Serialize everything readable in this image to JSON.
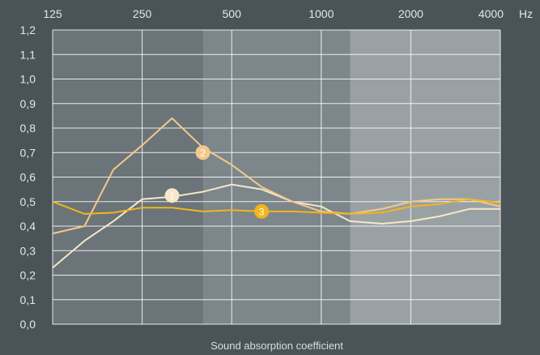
{
  "chart_data": {
    "type": "line",
    "xlabel": "Sound absorption coefficient",
    "x_unit": "Hz",
    "x_ticks": [
      "125",
      "250",
      "500",
      "1000",
      "2000",
      "4000"
    ],
    "y_ticks": [
      "0,0",
      "0,1",
      "0,2",
      "0,3",
      "0,4",
      "0,5",
      "0,6",
      "0,7",
      "0,8",
      "0,9",
      "1,0",
      "1,1",
      "1,2"
    ],
    "ylim": [
      0,
      1.2
    ],
    "x_scale": "log",
    "grid": true,
    "x": [
      125,
      160,
      200,
      250,
      315,
      400,
      500,
      630,
      800,
      1000,
      1250,
      1600,
      2000,
      2500,
      3150,
      4000
    ],
    "series": [
      {
        "marker": "1",
        "color": "#f6e7c8",
        "values": [
          0.23,
          0.34,
          0.42,
          0.51,
          0.52,
          0.54,
          0.57,
          0.55,
          0.5,
          0.48,
          0.42,
          0.41,
          0.42,
          0.44,
          0.47,
          0.47
        ],
        "marker_at_x": 315,
        "marker_y": 0.525
      },
      {
        "marker": "2",
        "color": "#f3c98a",
        "values": [
          0.37,
          0.4,
          0.63,
          0.73,
          0.84,
          0.72,
          0.65,
          0.56,
          0.5,
          0.46,
          0.45,
          0.47,
          0.5,
          0.51,
          0.51,
          0.48
        ],
        "marker_at_x": 400,
        "marker_y": 0.7
      },
      {
        "marker": "3",
        "color": "#f2b51d",
        "values": [
          0.5,
          0.45,
          0.455,
          0.475,
          0.475,
          0.46,
          0.465,
          0.46,
          0.46,
          0.455,
          0.45,
          0.455,
          0.48,
          0.49,
          0.51,
          0.495
        ],
        "marker_at_x": 630,
        "marker_y": 0.46
      }
    ],
    "bands": [
      {
        "from": 125,
        "to": 400,
        "color": "#6b7478"
      },
      {
        "from": 400,
        "to": 1250,
        "color": "#7d868a"
      },
      {
        "from": 1250,
        "to": 4000,
        "color": "#9aa1a4"
      }
    ],
    "colors": {
      "background": "#4a5358",
      "grid": "#ffffff",
      "text": "#e4e7e9"
    }
  }
}
